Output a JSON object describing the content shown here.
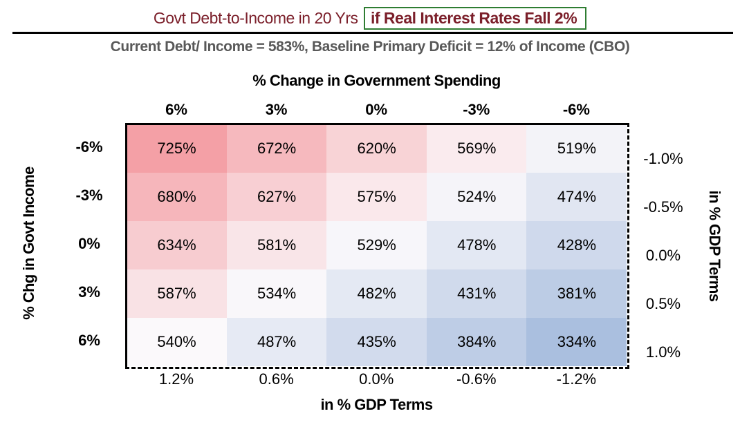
{
  "title": {
    "part1": "Govt Debt-to-Income in 20 Yrs",
    "part2": "if Real Interest Rates Fall 2%"
  },
  "subtitle": "Current Debt/ Income = 583%, Baseline Primary Deficit = 12% of Income (CBO)",
  "colors": {
    "title": "#7b1f2a",
    "highlight_box": "#2e7d32",
    "subtitle": "#595959",
    "high": "#f4a0a6",
    "mid": "#fbf9fb",
    "low": "#aabfdf"
  },
  "chart_data": {
    "type": "heatmap",
    "top_axis_title": "% Change in Government Spending",
    "column_labels": [
      "6%",
      "3%",
      "0%",
      "-3%",
      "-6%"
    ],
    "left_axis_title": "% Chg in Govt Income",
    "row_labels": [
      "-6%",
      "-3%",
      "0%",
      "3%",
      "6%"
    ],
    "right_axis_title": "in % GDP Terms",
    "right_labels": [
      "-1.0%",
      "-0.5%",
      "0.0%",
      "0.5%",
      "1.0%"
    ],
    "bottom_axis_title": "in % GDP Terms",
    "bottom_labels": [
      "1.2%",
      "0.6%",
      "0.0%",
      "-0.6%",
      "-1.2%"
    ],
    "unit": "%",
    "values": [
      [
        725,
        672,
        620,
        569,
        519
      ],
      [
        680,
        627,
        575,
        524,
        474
      ],
      [
        634,
        581,
        529,
        478,
        428
      ],
      [
        587,
        534,
        482,
        431,
        381
      ],
      [
        540,
        487,
        435,
        384,
        334
      ]
    ]
  }
}
